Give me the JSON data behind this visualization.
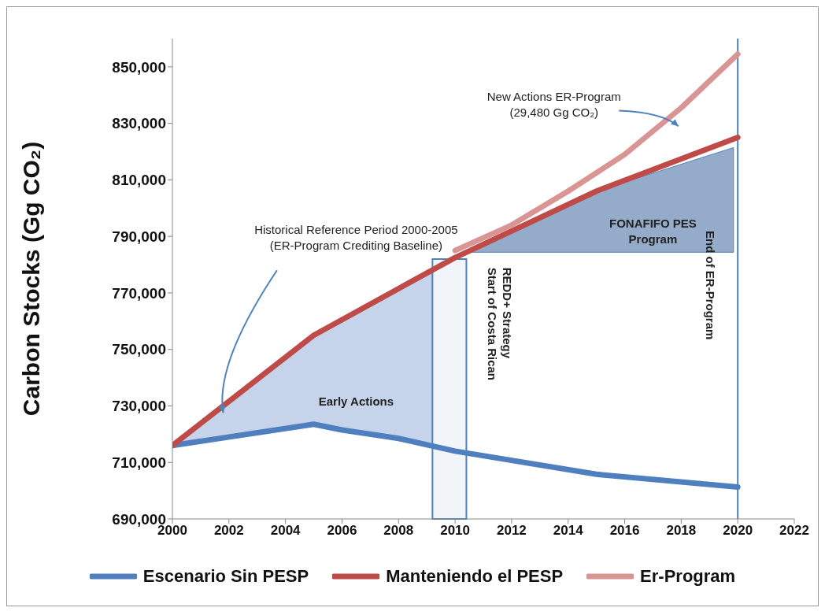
{
  "chart_data": {
    "type": "line",
    "ylabel": "Carbon Stocks (Gg CO₂)",
    "xlim": [
      2000,
      2022
    ],
    "xticks": [
      2000,
      2002,
      2004,
      2006,
      2008,
      2010,
      2012,
      2014,
      2016,
      2018,
      2020,
      2022
    ],
    "ylim": [
      690000,
      860000
    ],
    "yticks": [
      {
        "value": 690000,
        "label": "690,000"
      },
      {
        "value": 710000,
        "label": "710,000"
      },
      {
        "value": 730000,
        "label": "730,000"
      },
      {
        "value": 750000,
        "label": "750,000"
      },
      {
        "value": 770000,
        "label": "770,000"
      },
      {
        "value": 790000,
        "label": "790,000"
      },
      {
        "value": 810000,
        "label": "810,000"
      },
      {
        "value": 830000,
        "label": "830,000"
      },
      {
        "value": 850000,
        "label": "850,000"
      }
    ],
    "series": [
      {
        "name": "Escenario Sin PESP",
        "color": "#4f7fbf",
        "x": [
          2000,
          2005,
          2006,
          2008,
          2010,
          2015,
          2020
        ],
        "values": [
          716000,
          723500,
          721500,
          718500,
          714000,
          705800,
          701300
        ]
      },
      {
        "name": "Manteniendo el PESP",
        "color": "#be4b48",
        "x": [
          2000,
          2005,
          2010,
          2015,
          2020
        ],
        "values": [
          716000,
          755000,
          782500,
          806000,
          825000
        ]
      },
      {
        "name": "Er-Program",
        "color": "#d99594",
        "x": [
          2010,
          2012,
          2014,
          2016,
          2018,
          2020
        ],
        "values": [
          785000,
          794000,
          806000,
          819000,
          835500,
          854500
        ]
      }
    ],
    "bands": [
      {
        "axis": "x",
        "from": 2009.2,
        "to": 2010.4,
        "label": "Start of Costa Rican REDD+ Strategy",
        "color": "#4f81bd"
      }
    ],
    "ref_lines": [
      {
        "axis": "x",
        "value": 2020,
        "label": "End of ER-Program",
        "color": "#4f81bd"
      }
    ],
    "annotations": [
      "Historical Reference Period 2000-2005 (ER-Program Crediting Baseline)",
      "New Actions ER-Program (29,480 Gg CO₂)",
      "Early Actions",
      "FONAFIFO PES Program"
    ],
    "grid": false,
    "legend": "bottom",
    "marker": "none",
    "line_style": "solid"
  }
}
